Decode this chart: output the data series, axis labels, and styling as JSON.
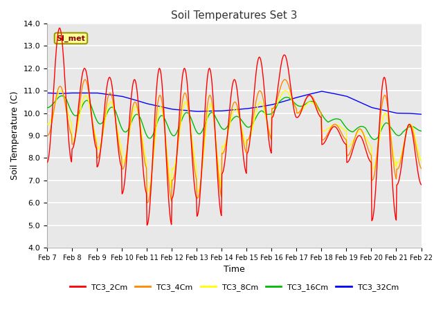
{
  "title": "Soil Temperatures Set 3",
  "xlabel": "Time",
  "ylabel": "Soil Temperature (C)",
  "ylim": [
    4.0,
    14.0
  ],
  "yticks": [
    4.0,
    5.0,
    6.0,
    7.0,
    8.0,
    9.0,
    10.0,
    11.0,
    12.0,
    13.0,
    14.0
  ],
  "xtick_labels": [
    "Feb 7",
    "Feb 8",
    "Feb 9",
    "Feb 10",
    "Feb 11",
    "Feb 12",
    "Feb 13",
    "Feb 14",
    "Feb 15",
    "Feb 16",
    "Feb 17",
    "Feb 18",
    "Feb 19",
    "Feb 20",
    "Feb 21",
    "Feb 22"
  ],
  "series_colors": {
    "TC3_2Cm": "#ff0000",
    "TC3_4Cm": "#ff8800",
    "TC3_8Cm": "#ffff00",
    "TC3_16Cm": "#00bb00",
    "TC3_32Cm": "#0000ff"
  },
  "background_color": "#ffffff",
  "plot_bg_color": "#e8e8e8",
  "grid_color": "#ffffff",
  "annotation_text": "SI_met",
  "annotation_bg": "#ffff99",
  "annotation_border": "#999900",
  "figsize": [
    6.4,
    4.8
  ],
  "dpi": 100,
  "title_fontsize": 11,
  "axis_fontsize": 9,
  "tick_fontsize": 8
}
